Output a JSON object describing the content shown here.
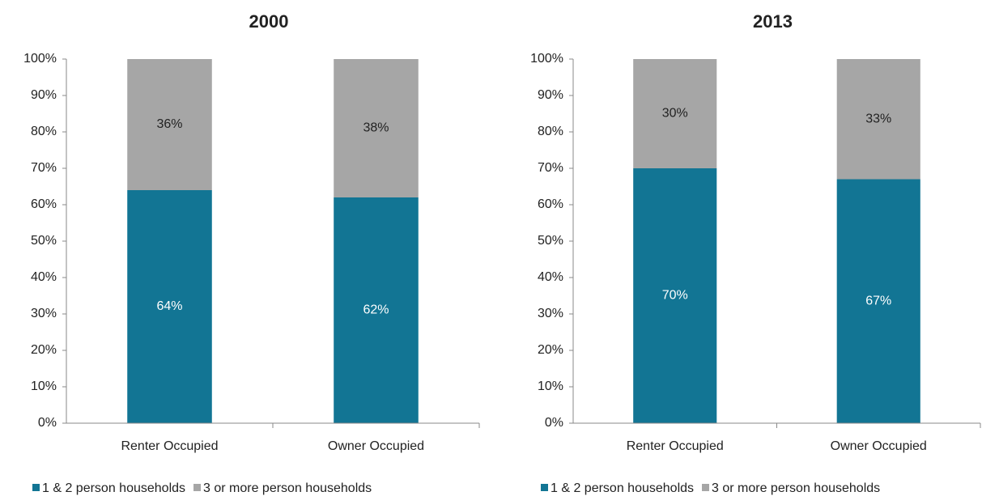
{
  "chart_data": [
    {
      "type": "stacked_bar",
      "title": "2000",
      "categories": [
        "Renter Occupied",
        "Owner Occupied"
      ],
      "series": [
        {
          "name": "1 & 2 person households",
          "color": "#127594",
          "values": [
            64,
            62
          ],
          "value_labels": [
            "64%",
            "62%"
          ]
        },
        {
          "name": "3 or more person households",
          "color": "#a6a6a6",
          "values": [
            36,
            38
          ],
          "value_labels": [
            "36%",
            "38%"
          ]
        }
      ],
      "ylim": [
        0,
        100
      ],
      "yticks": [
        {
          "value": 0,
          "label": "0%"
        },
        {
          "value": 10,
          "label": "10%"
        },
        {
          "value": 20,
          "label": "20%"
        },
        {
          "value": 30,
          "label": "30%"
        },
        {
          "value": 40,
          "label": "40%"
        },
        {
          "value": 50,
          "label": "50%"
        },
        {
          "value": 60,
          "label": "60%"
        },
        {
          "value": 70,
          "label": "70%"
        },
        {
          "value": 80,
          "label": "80%"
        },
        {
          "value": 90,
          "label": "90%"
        },
        {
          "value": 100,
          "label": "100%"
        }
      ],
      "legend": "bottom"
    },
    {
      "type": "stacked_bar",
      "title": "2013",
      "categories": [
        "Renter Occupied",
        "Owner Occupied"
      ],
      "series": [
        {
          "name": "1 & 2 person households",
          "color": "#127594",
          "values": [
            70,
            67
          ],
          "value_labels": [
            "70%",
            "67%"
          ]
        },
        {
          "name": "3 or more person households",
          "color": "#a6a6a6",
          "values": [
            30,
            33
          ],
          "value_labels": [
            "30%",
            "33%"
          ]
        }
      ],
      "ylim": [
        0,
        100
      ],
      "yticks": [
        {
          "value": 0,
          "label": "0%"
        },
        {
          "value": 10,
          "label": "10%"
        },
        {
          "value": 20,
          "label": "20%"
        },
        {
          "value": 30,
          "label": "30%"
        },
        {
          "value": 40,
          "label": "40%"
        },
        {
          "value": 50,
          "label": "50%"
        },
        {
          "value": 60,
          "label": "60%"
        },
        {
          "value": 70,
          "label": "70%"
        },
        {
          "value": 80,
          "label": "80%"
        },
        {
          "value": 90,
          "label": "90%"
        },
        {
          "value": 100,
          "label": "100%"
        }
      ],
      "legend": "bottom"
    }
  ]
}
